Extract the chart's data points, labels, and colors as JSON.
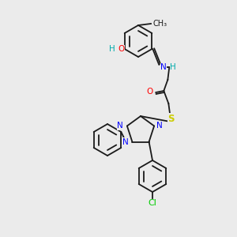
{
  "bg_color": "#ebebeb",
  "bond_color": "#1a1a1a",
  "atom_colors": {
    "N": "#0000ff",
    "O": "#ff0000",
    "S": "#cccc00",
    "Cl": "#00cc00",
    "H": "#00aaaa",
    "C": "#1a1a1a"
  },
  "font_size": 7.5,
  "line_width": 1.3
}
